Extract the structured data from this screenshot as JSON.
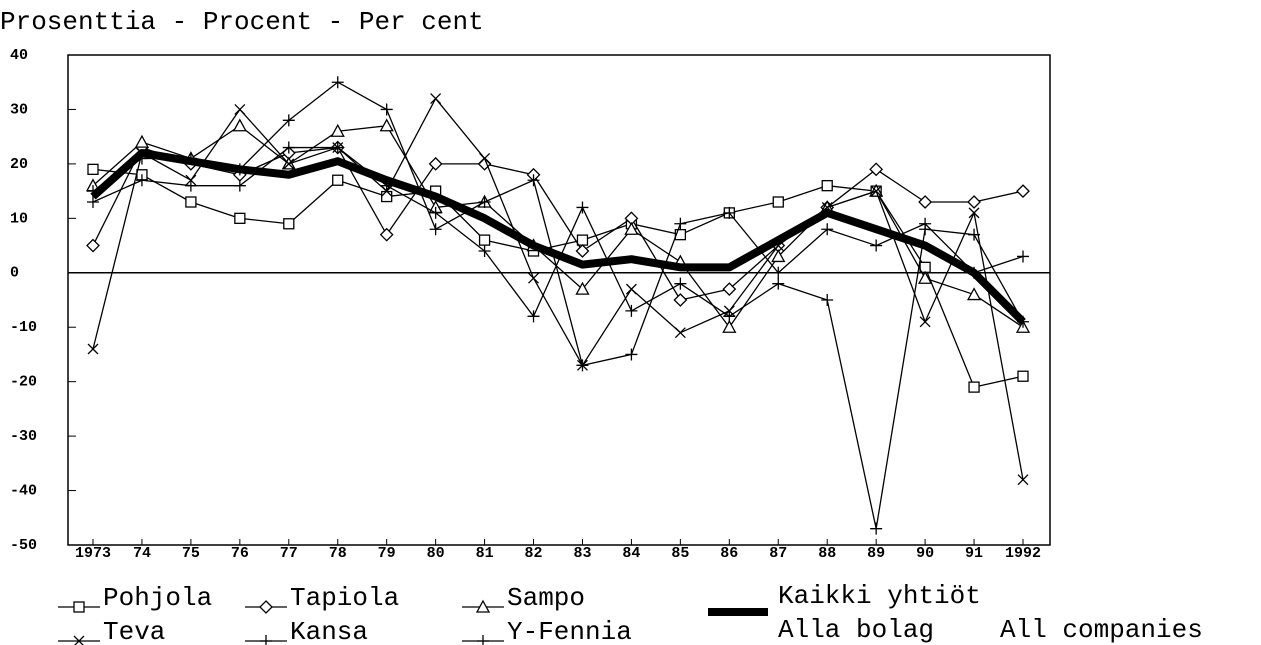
{
  "chart_data": {
    "type": "line",
    "title": "Prosenttia - Procent - Per cent",
    "categories": [
      "1973",
      "74",
      "75",
      "76",
      "77",
      "78",
      "79",
      "80",
      "81",
      "82",
      "83",
      "84",
      "85",
      "86",
      "87",
      "88",
      "89",
      "90",
      "91",
      "1992"
    ],
    "ylim": [
      -50,
      40
    ],
    "yticks": [
      -50,
      -40,
      -30,
      -20,
      -10,
      0,
      10,
      20,
      30,
      40
    ],
    "legend_subtitle": [
      "Alla bolag",
      "All companies"
    ],
    "series": [
      {
        "name": "Pohjola",
        "color": "#000000",
        "marker": "square",
        "values": [
          19,
          18,
          13,
          10,
          9,
          17,
          14,
          15,
          6,
          4,
          6,
          9,
          7,
          11,
          13,
          16,
          15,
          1,
          -21,
          -19
        ]
      },
      {
        "name": "Tapiola",
        "color": "#000000",
        "marker": "diamond",
        "values": [
          5,
          23,
          20,
          18,
          22,
          23,
          7,
          20,
          20,
          18,
          4,
          10,
          -5,
          -3,
          5,
          12,
          19,
          13,
          13,
          15
        ]
      },
      {
        "name": "Sampo",
        "color": "#000000",
        "marker": "triangle",
        "values": [
          16,
          24,
          21,
          27,
          20,
          26,
          27,
          12,
          13,
          5,
          -3,
          8,
          2,
          -10,
          3,
          12,
          15,
          -1,
          -4,
          -10
        ]
      },
      {
        "name": "Teva",
        "color": "#000000",
        "marker": "cross",
        "values": [
          -14,
          22,
          17,
          30,
          20,
          23,
          15,
          32,
          21,
          -1,
          -17,
          -3,
          -11,
          -7,
          5,
          12,
          15,
          -9,
          11,
          -38
        ]
      },
      {
        "name": "Kansa",
        "color": "#000000",
        "marker": "plus",
        "values": [
          13,
          17,
          16,
          16,
          23,
          23,
          16,
          11,
          4,
          -8,
          12,
          -7,
          -2,
          -8,
          -2,
          -5,
          -47,
          8,
          7,
          -9
        ]
      },
      {
        "name": "Y-Fennia",
        "color": "#000000",
        "marker": "plus",
        "values": [
          15,
          21,
          21,
          19,
          28,
          35,
          30,
          8,
          13,
          17,
          -17,
          -15,
          9,
          11,
          0,
          8,
          5,
          9,
          0,
          3
        ]
      },
      {
        "name": "Kaikki yhtiöt",
        "color": "#000000",
        "marker": "thick",
        "values": [
          14,
          22,
          20.5,
          19,
          18,
          20.5,
          17,
          14,
          10,
          5,
          1.5,
          2.5,
          1,
          1,
          6,
          11,
          8,
          5,
          0,
          -9
        ]
      }
    ]
  }
}
